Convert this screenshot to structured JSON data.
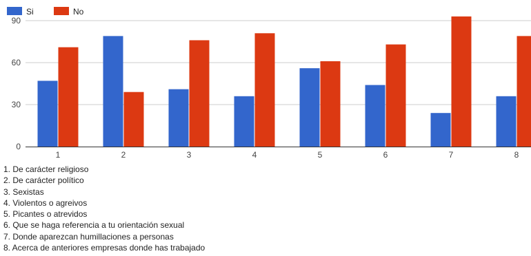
{
  "chart_data": {
    "type": "bar",
    "categories": [
      "1",
      "2",
      "3",
      "4",
      "5",
      "6",
      "7",
      "8"
    ],
    "series": [
      {
        "name": "Si",
        "color": "#3366cc",
        "values": [
          47,
          79,
          41,
          36,
          56,
          44,
          24,
          36
        ]
      },
      {
        "name": "No",
        "color": "#dc3912",
        "values": [
          71,
          39,
          76,
          81,
          61,
          73,
          93,
          79
        ]
      }
    ],
    "y_ticks": [
      0,
      30,
      60,
      90
    ],
    "ylim": [
      0,
      100
    ],
    "grid": true,
    "legend_position": "top-left"
  },
  "notes": [
    "1. De carácter religioso",
    "2. De carácter político",
    "3. Sexistas",
    "4. Violentos o agreivos",
    "5. Picantes o atrevidos",
    "6. Que se haga referencia a tu orientación sexual",
    "7. Donde aparezcan humillaciones a personas",
    "8. Acerca de anteriores empresas donde has trabajado"
  ]
}
